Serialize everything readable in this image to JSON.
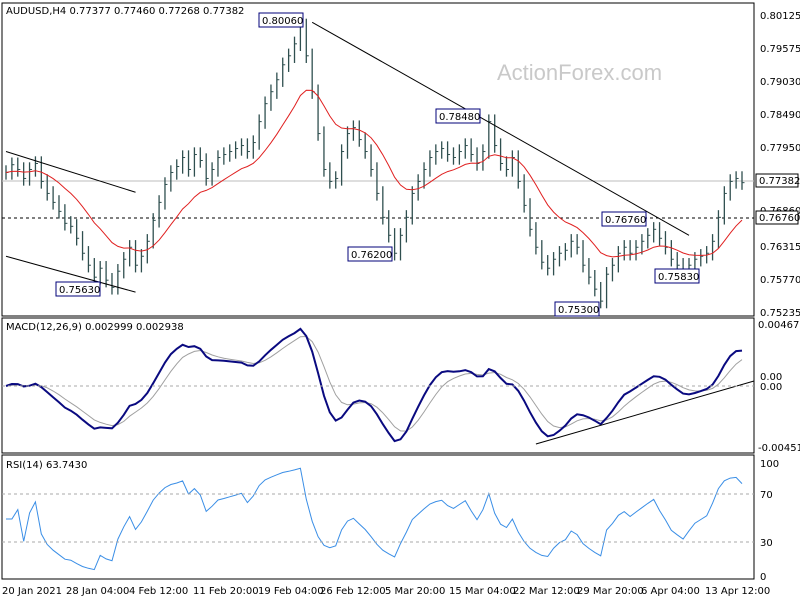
{
  "chart_data": [
    {
      "type": "ohlc",
      "title": "AUDUSD,H4  0.77377 0.77460 0.77268 0.77382",
      "watermark": "ActionForex.com",
      "ylim": [
        0.75235,
        0.80165
      ],
      "y_ticks": [
        "0.80125",
        "0.79575",
        "0.79030",
        "0.78490",
        "0.77950",
        "0.77382",
        "0.76860",
        "0.76760",
        "0.76315",
        "0.75770",
        "0.75235"
      ],
      "last_price": "0.77382",
      "support_level": "0.76760",
      "labels": [
        "0.80060",
        "0.78480",
        "0.76760",
        "0.76200",
        "0.75830",
        "0.75630",
        "0.75300"
      ],
      "close_series": [
        0.7755,
        0.7768,
        0.776,
        0.7745,
        0.776,
        0.777,
        0.774,
        0.772,
        0.7705,
        0.769,
        0.767,
        0.7665,
        0.7645,
        0.762,
        0.76,
        0.758,
        0.7595,
        0.7575,
        0.7563,
        0.759,
        0.761,
        0.763,
        0.76,
        0.7615,
        0.764,
        0.7675,
        0.7705,
        0.7735,
        0.7755,
        0.7765,
        0.778,
        0.776,
        0.7785,
        0.7775,
        0.7745,
        0.776,
        0.778,
        0.7785,
        0.779,
        0.7795,
        0.78,
        0.779,
        0.7805,
        0.784,
        0.787,
        0.789,
        0.791,
        0.7935,
        0.795,
        0.797,
        0.8,
        0.795,
        0.789,
        0.782,
        0.776,
        0.774,
        0.7745,
        0.779,
        0.782,
        0.783,
        0.781,
        0.779,
        0.776,
        0.772,
        0.768,
        0.765,
        0.762,
        0.765,
        0.768,
        0.772,
        0.774,
        0.776,
        0.778,
        0.779,
        0.7795,
        0.7785,
        0.778,
        0.779,
        0.78,
        0.7785,
        0.777,
        0.779,
        0.784,
        0.78,
        0.777,
        0.776,
        0.778,
        0.774,
        0.77,
        0.766,
        0.763,
        0.7605,
        0.7595,
        0.761,
        0.762,
        0.7625,
        0.764,
        0.763,
        0.76,
        0.758,
        0.756,
        0.754,
        0.7585,
        0.76,
        0.762,
        0.763,
        0.762,
        0.763,
        0.764,
        0.765,
        0.766,
        0.7645,
        0.763,
        0.761,
        0.76,
        0.759,
        0.76,
        0.761,
        0.7615,
        0.762,
        0.764,
        0.768,
        0.772,
        0.774,
        0.7745,
        0.7738
      ],
      "trendlines": [
        {
          "name": "falling-resistance",
          "from": {
            "bar": 52,
            "price": 0.8006
          },
          "to": {
            "bar": 116,
            "price": 0.765
          }
        },
        {
          "name": "channel-upper",
          "from": {
            "bar": 0,
            "price": 0.779
          },
          "to": {
            "bar": 22,
            "price": 0.7722
          }
        },
        {
          "name": "channel-lower",
          "from": {
            "bar": 0,
            "price": 0.7615
          },
          "to": {
            "bar": 22,
            "price": 0.7555
          }
        }
      ],
      "moving_average": {
        "color": "#e02020"
      },
      "x_labels": [
        "20 Jan 2021",
        "28 Jan 04:00",
        "4 Feb 12:00",
        "11 Feb 20:00",
        "19 Feb 04:00",
        "26 Feb 12:00",
        "5 Mar 20:00",
        "15 Mar 04:00",
        "22 Mar 12:00",
        "29 Mar 20:00",
        "6 Apr 04:00",
        "13 Apr 12:00"
      ]
    },
    {
      "type": "line",
      "title": "MACD(12,26,9) 0.002999 0.002938",
      "ylim": [
        -0.005,
        0.005
      ],
      "y_ticks": [
        "0.004677",
        "0.00",
        "0.00",
        "-0.004519"
      ],
      "series": [
        {
          "name": "MACD",
          "color": "#0a0a80"
        },
        {
          "name": "Signal",
          "color": "#a0a0a0"
        }
      ],
      "trendline": {
        "from": {
          "bar": 90,
          "value": -0.0045
        },
        "to": {
          "bar": 124,
          "value": 0.0005
        }
      }
    },
    {
      "type": "line",
      "title": "RSI(14) 63.7430",
      "ylim": [
        0,
        100
      ],
      "y_ticks": [
        "100",
        "70",
        "30",
        "0"
      ],
      "levels": [
        70,
        30
      ],
      "series": [
        {
          "name": "RSI",
          "color": "#3a8ee6"
        }
      ]
    }
  ]
}
